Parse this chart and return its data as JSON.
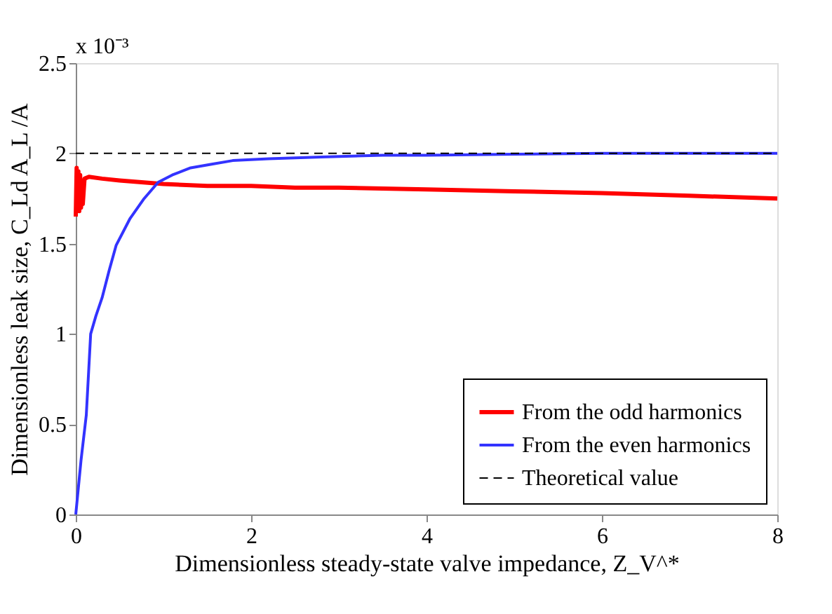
{
  "chart_data": {
    "type": "line",
    "xlabel": "Dimensionless steady-state valve impedance, Z_V^*",
    "ylabel": "Dimensionless leak size, C_Ld A_L /A",
    "annotations": [
      "x 10⁻³"
    ],
    "xlim": [
      0,
      8
    ],
    "xticks": [
      0,
      2,
      4,
      6,
      8
    ],
    "ylim": [
      0,
      2.5
    ],
    "yticks": [
      0,
      0.5,
      1,
      1.5,
      2,
      2.5
    ],
    "legend": "bottom right",
    "grid": false,
    "series": [
      {
        "name": "From the odd harmonics",
        "color": "#ff0000",
        "line_style": "solid",
        "x": [
          0.0,
          0.01,
          0.02,
          0.03,
          0.04,
          0.05,
          0.06,
          0.07,
          0.08,
          0.1,
          0.15,
          0.3,
          0.5,
          1,
          1.5,
          2,
          2.5,
          3,
          4,
          5,
          6,
          7,
          8
        ],
        "values": [
          1.65,
          1.92,
          1.7,
          1.9,
          1.68,
          1.88,
          1.7,
          1.85,
          1.72,
          1.86,
          1.87,
          1.86,
          1.85,
          1.83,
          1.82,
          1.82,
          1.81,
          1.81,
          1.8,
          1.79,
          1.78,
          1.765,
          1.75
        ]
      },
      {
        "name": "From the even harmonics",
        "color": "#3333ff",
        "line_style": "solid",
        "x": [
          0,
          0.06,
          0.12,
          0.17,
          0.23,
          0.3,
          0.38,
          0.46,
          0.62,
          0.78,
          0.94,
          1.1,
          1.31,
          1.55,
          1.79,
          2.2,
          2.8,
          3.5,
          4,
          5,
          6,
          7,
          8
        ],
        "values": [
          0,
          0.3,
          0.55,
          1.0,
          1.1,
          1.2,
          1.35,
          1.49,
          1.64,
          1.75,
          1.84,
          1.88,
          1.92,
          1.94,
          1.96,
          1.97,
          1.98,
          1.99,
          1.99,
          1.995,
          2.0,
          2.0,
          2.0
        ]
      },
      {
        "name": "Theoretical value",
        "color": "#000000",
        "line_style": "dashed",
        "x": [
          0,
          8
        ],
        "values": [
          2,
          2
        ]
      }
    ]
  }
}
